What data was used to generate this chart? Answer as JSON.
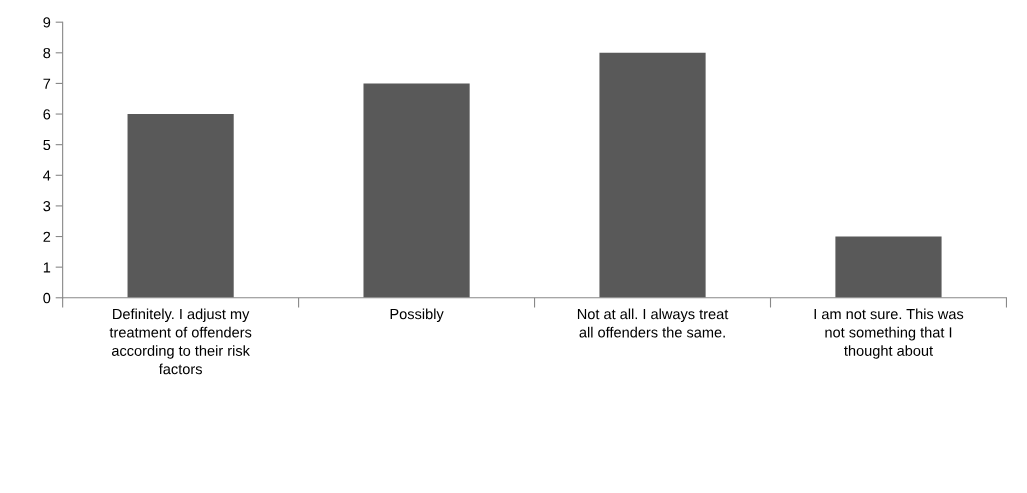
{
  "chart_data": {
    "type": "bar",
    "categories": [
      "Definitely. I adjust my treatment of offenders according to their risk factors",
      "Possibly",
      "Not at all. I always treat all offenders the same.",
      "I am not sure. This was not something that I thought about"
    ],
    "values": [
      6,
      7,
      8,
      2
    ],
    "color": "#595959",
    "ylim": [
      0,
      9
    ],
    "yticks": [
      0,
      1,
      2,
      3,
      4,
      5,
      6,
      7,
      8,
      9
    ],
    "grid": false
  }
}
